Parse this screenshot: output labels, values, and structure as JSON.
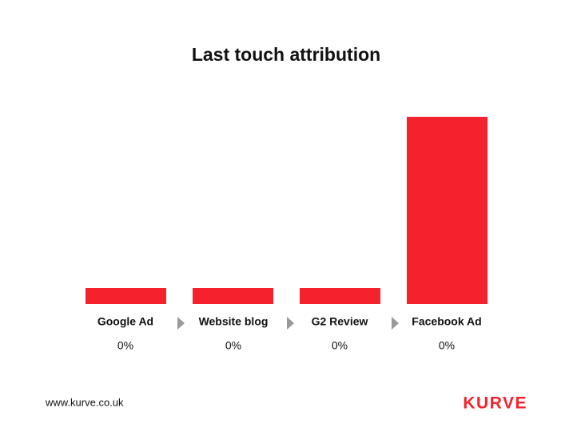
{
  "title": "Last touch attribution",
  "steps": [
    {
      "label": "Google Ad",
      "share": "0%"
    },
    {
      "label": "Website blog",
      "share": "0%"
    },
    {
      "label": "G2 Review",
      "share": "0%"
    },
    {
      "label": "Facebook Ad",
      "share": "0%"
    }
  ],
  "footer": {
    "url": "www.kurve.co.uk",
    "logo": "KURVE"
  }
}
